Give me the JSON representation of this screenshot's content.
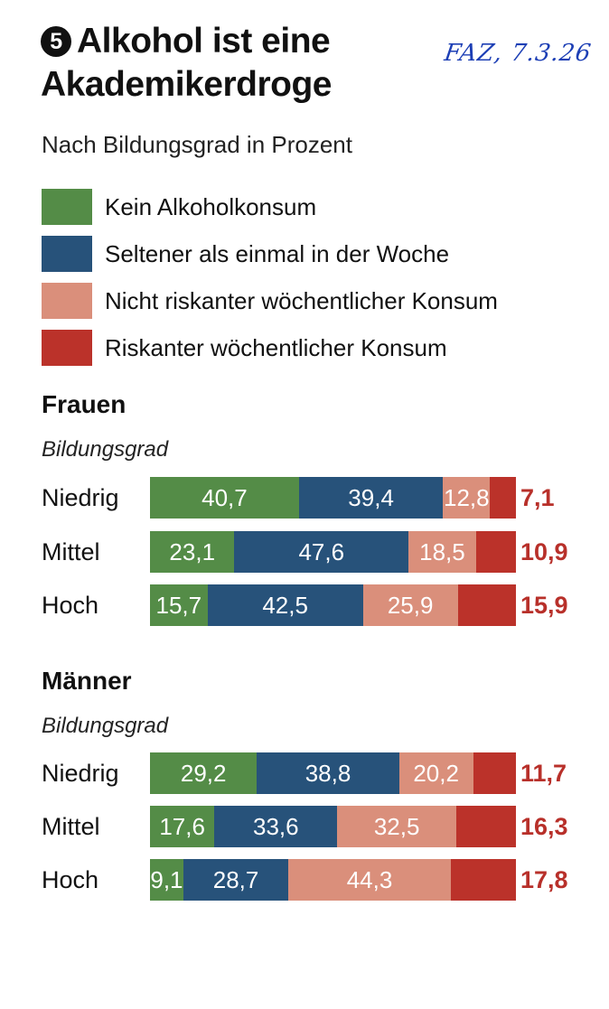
{
  "header": {
    "number": "5",
    "title_line1": "Alkohol ist eine",
    "title_line2": "Akademikerdroge",
    "handwritten_note": "FAZ, 7.3.26",
    "subtitle": "Nach Bildungsgrad in Prozent"
  },
  "colors": {
    "kein": "#548c47",
    "selten": "#27527a",
    "nicht_riskant": "#da8f7b",
    "riskant": "#bb322a",
    "risk_label": "#b8302a"
  },
  "chart_data": {
    "type": "bar",
    "orientation": "horizontal",
    "stacked": true,
    "title": "Alkohol ist eine Akademikerdroge",
    "subtitle": "Nach Bildungsgrad in Prozent",
    "xlim": [
      0,
      100
    ],
    "legend_position": "top",
    "legend": [
      "Kein Alkoholkonsum",
      "Seltener als einmal in der Woche",
      "Nicht riskanter wöchentlicher Konsum",
      "Riskanter wöchentlicher Konsum"
    ],
    "groups": [
      {
        "name": "Frauen",
        "axis_label": "Bildungsgrad",
        "categories": [
          "Niedrig",
          "Mittel",
          "Hoch"
        ],
        "series": [
          {
            "name": "Kein Alkoholkonsum",
            "values": [
              40.7,
              23.1,
              15.7
            ],
            "labels": [
              "40,7",
              "23,1",
              "15,7"
            ]
          },
          {
            "name": "Seltener als einmal in der Woche",
            "values": [
              39.4,
              47.6,
              42.5
            ],
            "labels": [
              "39,4",
              "47,6",
              "42,5"
            ]
          },
          {
            "name": "Nicht riskanter wöchentlicher Konsum",
            "values": [
              12.8,
              18.5,
              25.9
            ],
            "labels": [
              "12,8",
              "18,5",
              "25,9"
            ]
          },
          {
            "name": "Riskanter wöchentlicher Konsum",
            "values": [
              7.1,
              10.9,
              15.9
            ],
            "labels": [
              "7,1",
              "10,9",
              "15,9"
            ]
          }
        ]
      },
      {
        "name": "Männer",
        "axis_label": "Bildungsgrad",
        "categories": [
          "Niedrig",
          "Mittel",
          "Hoch"
        ],
        "series": [
          {
            "name": "Kein Alkoholkonsum",
            "values": [
              29.2,
              17.6,
              9.1
            ],
            "labels": [
              "29,2",
              "17,6",
              "9,1"
            ]
          },
          {
            "name": "Seltener als einmal in der Woche",
            "values": [
              38.8,
              33.6,
              28.7
            ],
            "labels": [
              "38,8",
              "33,6",
              "28,7"
            ]
          },
          {
            "name": "Nicht riskanter wöchentlicher Konsum",
            "values": [
              20.2,
              32.5,
              44.3
            ],
            "labels": [
              "20,2",
              "32,5",
              "44,3"
            ]
          },
          {
            "name": "Riskanter wöchentlicher Konsum",
            "values": [
              11.7,
              16.3,
              17.8
            ],
            "labels": [
              "11,7",
              "16,3",
              "17,8"
            ]
          }
        ]
      }
    ]
  }
}
